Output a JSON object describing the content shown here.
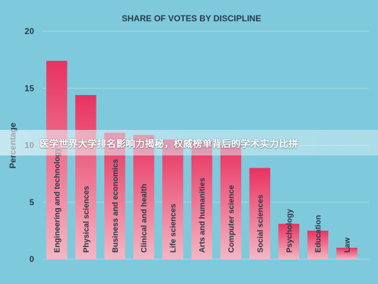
{
  "chart_data": {
    "type": "bar",
    "title": "SHARE OF VOTES BY DISCIPLINE",
    "xlabel": "",
    "ylabel": "Percentage",
    "ylim": [
      0,
      20
    ],
    "yticks": [
      0,
      5,
      10,
      15,
      20
    ],
    "grid": true,
    "categories": [
      "Engineering and technology",
      "Physical sciences",
      "Business and economics",
      "Clinical and health",
      "Life sciences",
      "Arts and humanities",
      "Computer science",
      "Social sciences",
      "Psychology",
      "Education",
      "Law"
    ],
    "values": [
      17.4,
      14.4,
      11.1,
      10.9,
      10.5,
      10.3,
      10.0,
      8.0,
      3.1,
      2.5,
      1.0
    ],
    "colors": {
      "bar_top": "#e8325f",
      "bar_bottom": "#f4b6c3",
      "background": "#7fc9dc",
      "grid": "#a9dbe7",
      "text": "#2b3a4a"
    }
  },
  "overlay_banner": {
    "text": "医学世界大学排名影响力揭秘，权威榜单背后的学术实力比拼"
  }
}
